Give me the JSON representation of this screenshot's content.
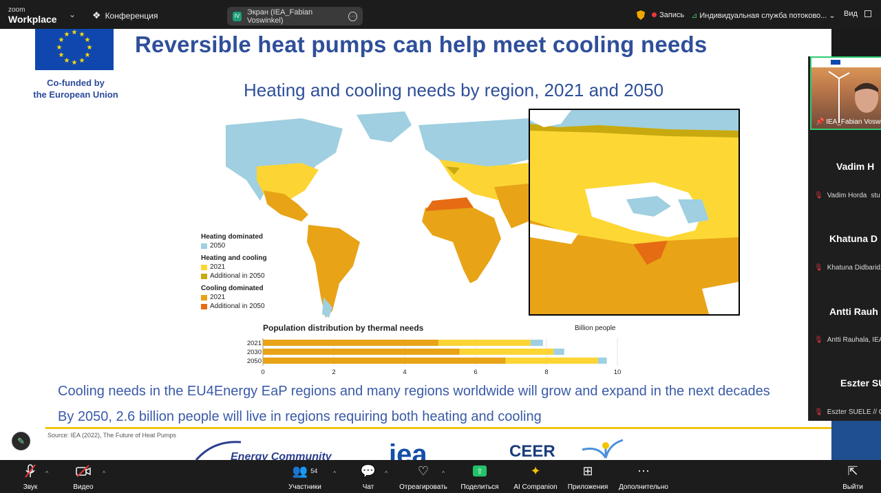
{
  "app": {
    "logo_top": "zoom",
    "logo_bottom": "Workplace",
    "meeting_label": "Конференция"
  },
  "share": {
    "initials": "IV",
    "label": "Экран (IEA_Fabian Voswinkel)"
  },
  "topright": {
    "record": "Запись",
    "stream": "Индивидуальная служба потоково...",
    "view": "Вид"
  },
  "slide": {
    "eu_caption_line1": "Co-funded by",
    "eu_caption_line2": "the European Union",
    "title": "Reversible heat pumps can help meet cooling needs",
    "chart_title": "Heating and cooling needs by region, 2021 and 2050",
    "legend": {
      "heating_header": "Heating dominated",
      "heating_2050": "2050",
      "both_header": "Heating and cooling",
      "both_2021": "2021",
      "both_add": "Additional in 2050",
      "cooling_header": "Cooling dominated",
      "cooling_2021": "2021",
      "cooling_add": "Additional in 2050"
    },
    "bullet1": "Cooling needs in the EU4Energy EaP regions and many regions worldwide will grow and expand in the next decades",
    "bullet2": "By 2050, 2.6 billion people will live in regions requiring both heating and cooling",
    "source": "Source: IEA (2022), The Future of Heat Pumps",
    "logo_iea": "iea",
    "logo_ceer": "CEER",
    "logo_ec": "Energy Community"
  },
  "chart_data": {
    "type": "bar",
    "stacked": true,
    "orientation": "horizontal",
    "title": "Population distribution by thermal needs",
    "unit": "Billion people",
    "categories": [
      "2021",
      "2030",
      "2050"
    ],
    "series": [
      {
        "values": [
          4.95,
          5.55,
          6.85
        ],
        "color": "#e8a317"
      },
      {
        "values": [
          2.6,
          2.65,
          2.6
        ],
        "color": "#fcd535"
      },
      {
        "values": [
          0.35,
          0.3,
          0.25
        ],
        "color": "#9fcfe0"
      }
    ],
    "xlim": [
      0,
      10
    ],
    "xticks": [
      "0",
      "2",
      "4",
      "6",
      "8",
      "10"
    ]
  },
  "participants": [
    {
      "name": "IEA_Fabian Voswinkel",
      "big": "",
      "small": ""
    },
    {
      "name": "",
      "big": "Vadim H",
      "small": "Vadim Horda",
      "extra": "stu"
    },
    {
      "name": "",
      "big": "Khatuna D",
      "small": "Khatuna Didbaridz",
      "extra": ""
    },
    {
      "name": "",
      "big": "Antti Rauh",
      "small": "Antti Rauhala, IEA",
      "extra": ""
    },
    {
      "name": "",
      "big": "Eszter SUE",
      "small": "Eszter SUELE // CE",
      "extra": ""
    }
  ],
  "toolbar": {
    "audio": "Звук",
    "video": "Видео",
    "participants": "Участники",
    "participants_count": "54",
    "chat": "Чат",
    "react": "Отреагировать",
    "share": "Поделиться",
    "ai": "AI Companion",
    "apps": "Приложения",
    "more": "Дополнительно",
    "leave": "Выйти"
  },
  "colors": {
    "heating": "#9fcfe0",
    "both": "#fcd535",
    "both_add": "#c8a90f",
    "cooling": "#e8a317",
    "cooling_add": "#e56c12",
    "title": "#2f4f9a"
  }
}
